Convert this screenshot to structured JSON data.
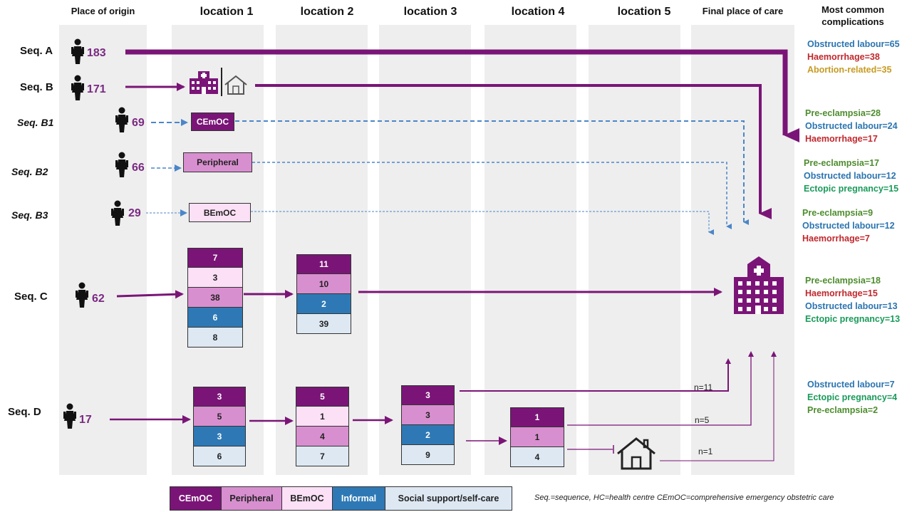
{
  "headers": {
    "origin": "Place of origin",
    "loc1": "location 1",
    "loc2": "location 2",
    "loc3": "location 3",
    "loc4": "location 4",
    "loc5": "location 5",
    "final": "Final place of care",
    "complications": "Most common complications"
  },
  "sequences": {
    "A": {
      "label": "Seq. A",
      "count": "183"
    },
    "B": {
      "label": "Seq. B",
      "count": "171"
    },
    "B1": {
      "label": "Seq. B1",
      "count": "69",
      "box": "CEmOC"
    },
    "B2": {
      "label": "Seq. B2",
      "count": "66",
      "box": "Peripheral"
    },
    "B3": {
      "label": "Seq. B3",
      "count": "29",
      "box": "BEmOC"
    },
    "C": {
      "label": "Seq. C",
      "count": "62"
    },
    "D": {
      "label": "Seq. D",
      "count": "17"
    }
  },
  "stacks": {
    "C_loc1": [
      "7",
      "3",
      "38",
      "6",
      "8"
    ],
    "C_loc2": [
      "11",
      "10",
      "2",
      "39"
    ],
    "D_loc1": [
      "3",
      "5",
      "3",
      "6"
    ],
    "D_loc2": [
      "5",
      "1",
      "4",
      "7"
    ],
    "D_loc3": [
      "3",
      "3",
      "2",
      "9"
    ],
    "D_loc4": [
      "1",
      "1",
      "4"
    ]
  },
  "flow_labels": {
    "n1": "n=11",
    "n2": "n=5",
    "n3": "n=1"
  },
  "complications": {
    "A": [
      "Obstructed labour=65",
      "Haemorrhage=38",
      "Abortion-related=35"
    ],
    "B1": [
      "Pre-eclampsia=28",
      "Obstructed labour=24",
      "Haemorrhage=17"
    ],
    "B2": [
      "Pre-eclampsia=17",
      "Obstructed labour=12",
      "Ectopic pregnancy=15"
    ],
    "B3": [
      "Pre-eclampsia=9",
      "Obstructed labour=12",
      "Haemorrhage=7"
    ],
    "C": [
      "Pre-eclampsia=18",
      "Haemorrhage=15",
      "Obstructed labour=13",
      "Ectopic pregnancy=13"
    ],
    "D": [
      "Obstructed labour=7",
      "Ectopic pregnancy=4",
      "Pre-eclampsia=2"
    ]
  },
  "complication_colors": {
    "Obstructed labour": "#2a74b0",
    "Haemorrhage": "#c0282d",
    "Abortion-related": "#c79a22",
    "Pre-eclampsia": "#4e8c2e",
    "Ectopic pregnancy": "#1a9a5a"
  },
  "legend": [
    "CEmOC",
    "Peripheral",
    "BEmOC",
    "Informal",
    "Social support/self-care"
  ],
  "footnote": "Seq.=sequence, HC=health centre CEmOC=comprehensive emergency obstetric care",
  "colors": {
    "CEmOC": "#7a1577",
    "Peripheral": "#d88fcf",
    "BEmOC": "#fbe0f6",
    "Informal": "#2e79b5",
    "Social support/self-care": "#dde8f3",
    "flow": "#7a1577",
    "dashed": "#4a86c8"
  }
}
